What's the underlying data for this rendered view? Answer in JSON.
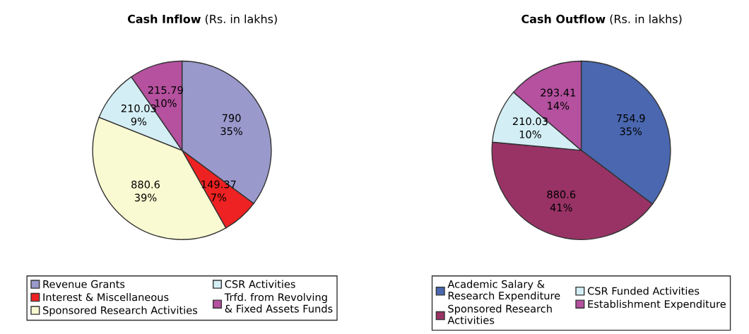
{
  "chart_data": [
    {
      "type": "pie",
      "title": "Cash Inflow",
      "subtitle": "(Rs. in lakhs)",
      "categories": [
        "Revenue Grants",
        "Interest & Miscellaneous",
        "Sponsored Research Activities",
        "CSR Activities",
        "Trfd. from Revolving\n& Fixed Assets Funds"
      ],
      "values": [
        790,
        149.37,
        880.6,
        210.03,
        215.79
      ],
      "colors": [
        "#9999cc",
        "#ee2222",
        "#fafad2",
        "#d4eef5",
        "#b5519f"
      ],
      "value_labels": [
        "790\n35%",
        "149.37\n7%",
        "880.6\n39%",
        "210.03\n9%",
        "215.79\n10%"
      ],
      "legend": "bottom"
    },
    {
      "type": "pie",
      "title": "Cash Outflow",
      "subtitle": "(Rs. in lakhs)",
      "categories": [
        "Academic Salary &\nResearch Expenditure",
        "Sponsored Research\nActivities",
        "CSR Funded Activities",
        "Establishment Expenditure"
      ],
      "values": [
        754.9,
        880.6,
        210.03,
        293.41
      ],
      "colors": [
        "#4a67b0",
        "#993366",
        "#d4eef5",
        "#b5519f"
      ],
      "value_labels": [
        "754.9\n35%",
        "880.6\n41%",
        "210.03\n10%",
        "293.41\n14%"
      ],
      "legend": "bottom"
    }
  ]
}
